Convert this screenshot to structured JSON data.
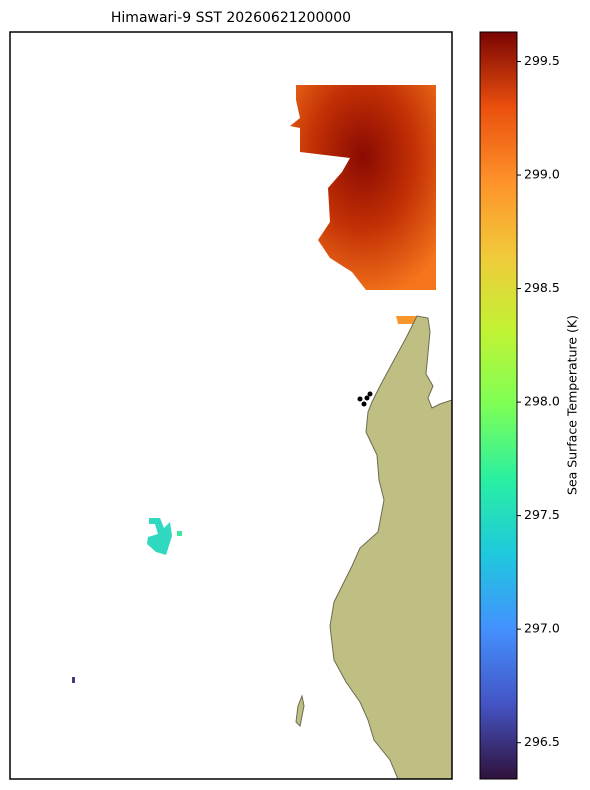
{
  "chart_data": {
    "type": "map",
    "title": "Himawari-9 SST 20260621200000",
    "colorbar": {
      "label": "Sea Surface Temperature (K)",
      "lim": [
        296.34,
        299.63
      ],
      "ticks": [
        {
          "value": 296.5,
          "label": "296.5"
        },
        {
          "value": 297,
          "label": "297.0"
        },
        {
          "value": 297.5,
          "label": "297.5"
        },
        {
          "value": 298,
          "label": "298.0"
        },
        {
          "value": 298.5,
          "label": "298.5"
        },
        {
          "value": 299,
          "label": "299.0"
        },
        {
          "value": 299.5,
          "label": "299.5"
        }
      ]
    }
  }
}
